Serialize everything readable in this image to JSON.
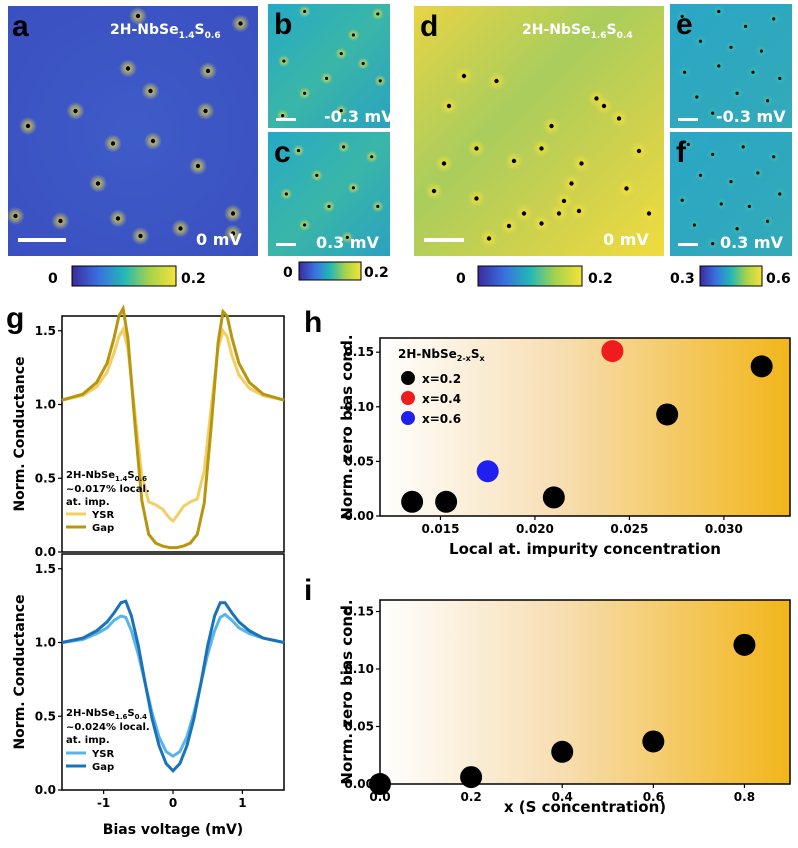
{
  "colors": {
    "map_low": "#3b4fc4",
    "map_mid": "#22b7b7",
    "map_high": "#f3e13a",
    "gold_dark": "#b8950f",
    "gold_light": "#f3cf63",
    "blue_dark": "#1a73b8",
    "blue_light": "#5ab4ea",
    "gradient_end": "#f2b619",
    "red": "#ee1c1c",
    "blue": "#1f1ff0"
  },
  "images": {
    "a": {
      "letter": "a",
      "title_base": "2H-NbSe",
      "title_sub1": "1.4",
      "title_mid": "S",
      "title_sub2": "0.6",
      "bias": "0 mV"
    },
    "b": {
      "letter": "b",
      "bias": "-0.3 mV"
    },
    "c": {
      "letter": "c",
      "bias": "0.3 mV"
    },
    "d": {
      "letter": "d",
      "title_base": "2H-NbSe",
      "title_sub1": "1.6",
      "title_mid": "S",
      "title_sub2": "0.4",
      "bias": "0 mV"
    },
    "e": {
      "letter": "e",
      "bias": "-0.3 mV"
    },
    "f": {
      "letter": "f",
      "bias": "0.3 mV"
    }
  },
  "colorbars": [
    {
      "name": "colorbar-a",
      "min": "0",
      "max": "0.2"
    },
    {
      "name": "colorbar-bc",
      "min": "0",
      "max": "0.2"
    },
    {
      "name": "colorbar-d",
      "min": "0",
      "max": "0.2"
    },
    {
      "name": "colorbar-ef",
      "min": "0.3",
      "max": "0.6"
    }
  ],
  "panel_letters": {
    "g": "g",
    "h": "h",
    "i": "i"
  },
  "chart_data": [
    {
      "id": "g-top",
      "type": "line",
      "xlim": [
        -1.6,
        1.6
      ],
      "ylim": [
        0,
        1.6
      ],
      "ylabel": "Norm. Conductance",
      "xlabel": "",
      "yticks": [
        "0.0",
        "0.5",
        "1.0",
        "1.5"
      ],
      "xticks": [],
      "legend": {
        "line1_base": "2H-NbSe",
        "line1_sub1": "1.4",
        "line1_mid": "S",
        "line1_sub2": "0.6",
        "line2": "~0.017% local.",
        "line3": "at. imp."
      },
      "series": [
        {
          "name": "YSR",
          "x": [
            -1.6,
            -1.3,
            -1.1,
            -0.95,
            -0.85,
            -0.78,
            -0.72,
            -0.65,
            -0.55,
            -0.45,
            -0.35,
            -0.25,
            -0.15,
            -0.05,
            0.0,
            0.05,
            0.15,
            0.25,
            0.35,
            0.45,
            0.55,
            0.65,
            0.72,
            0.78,
            0.85,
            0.95,
            1.1,
            1.3,
            1.6
          ],
          "y": [
            1.03,
            1.06,
            1.12,
            1.22,
            1.35,
            1.46,
            1.51,
            1.38,
            0.95,
            0.52,
            0.34,
            0.32,
            0.29,
            0.23,
            0.21,
            0.24,
            0.31,
            0.34,
            0.36,
            0.55,
            0.98,
            1.38,
            1.5,
            1.46,
            1.33,
            1.2,
            1.11,
            1.06,
            1.03
          ]
        },
        {
          "name": "Gap",
          "x": [
            -1.6,
            -1.3,
            -1.1,
            -0.95,
            -0.85,
            -0.78,
            -0.72,
            -0.65,
            -0.55,
            -0.45,
            -0.35,
            -0.25,
            -0.15,
            -0.05,
            0.0,
            0.05,
            0.15,
            0.25,
            0.35,
            0.45,
            0.55,
            0.65,
            0.72,
            0.78,
            0.85,
            0.95,
            1.1,
            1.3,
            1.6
          ],
          "y": [
            1.03,
            1.07,
            1.15,
            1.28,
            1.45,
            1.6,
            1.65,
            1.45,
            0.88,
            0.35,
            0.12,
            0.06,
            0.04,
            0.03,
            0.03,
            0.03,
            0.04,
            0.06,
            0.12,
            0.33,
            0.85,
            1.42,
            1.63,
            1.6,
            1.45,
            1.28,
            1.15,
            1.07,
            1.03
          ]
        }
      ]
    },
    {
      "id": "g-bottom",
      "type": "line",
      "xlim": [
        -1.6,
        1.6
      ],
      "ylim": [
        0,
        1.6
      ],
      "ylabel": "Norm. Conductance",
      "xlabel": "Bias voltage (mV)",
      "yticks": [
        "0.0",
        "0.5",
        "1.0",
        "1.5"
      ],
      "xticks": [
        "-1",
        "0",
        "1"
      ],
      "legend": {
        "line1_base": "2H-NbSe",
        "line1_sub1": "1.6",
        "line1_mid": "S",
        "line1_sub2": "0.4",
        "line2": "~0.024% local.",
        "line3": "at. imp."
      },
      "series": [
        {
          "name": "YSR",
          "x": [
            -1.6,
            -1.3,
            -1.1,
            -0.95,
            -0.85,
            -0.75,
            -0.68,
            -0.6,
            -0.5,
            -0.4,
            -0.3,
            -0.2,
            -0.1,
            0.0,
            0.1,
            0.2,
            0.3,
            0.4,
            0.5,
            0.6,
            0.68,
            0.75,
            0.85,
            0.95,
            1.1,
            1.3,
            1.6
          ],
          "y": [
            1.0,
            1.02,
            1.06,
            1.1,
            1.15,
            1.18,
            1.17,
            1.08,
            0.92,
            0.72,
            0.52,
            0.36,
            0.26,
            0.23,
            0.26,
            0.36,
            0.52,
            0.72,
            0.92,
            1.08,
            1.17,
            1.19,
            1.15,
            1.1,
            1.06,
            1.03,
            1.0
          ]
        },
        {
          "name": "Gap",
          "x": [
            -1.6,
            -1.3,
            -1.1,
            -0.95,
            -0.85,
            -0.75,
            -0.68,
            -0.6,
            -0.5,
            -0.4,
            -0.3,
            -0.2,
            -0.1,
            0.0,
            0.1,
            0.2,
            0.3,
            0.4,
            0.5,
            0.6,
            0.68,
            0.75,
            0.85,
            0.95,
            1.1,
            1.3,
            1.6
          ],
          "y": [
            1.0,
            1.03,
            1.08,
            1.14,
            1.2,
            1.27,
            1.28,
            1.18,
            0.98,
            0.72,
            0.48,
            0.3,
            0.18,
            0.13,
            0.18,
            0.3,
            0.48,
            0.72,
            0.98,
            1.18,
            1.27,
            1.27,
            1.2,
            1.14,
            1.08,
            1.03,
            1.0
          ]
        }
      ]
    },
    {
      "id": "h",
      "type": "scatter",
      "xlim": [
        0.0118,
        0.0335
      ],
      "ylim": [
        0,
        0.163
      ],
      "xlabel": "Local at. impurity concentration",
      "ylabel": "Norm. zero bias cond.",
      "xticks": [
        "0.015",
        "0.020",
        "0.025",
        "0.030"
      ],
      "yticks": [
        "0.00",
        "0.05",
        "0.10",
        "0.15"
      ],
      "legend_title_base": "2H-NbSe",
      "legend_title_sub": "2-x",
      "legend_title_mid": "S",
      "legend_title_sub2": "x",
      "series": [
        {
          "name": "x=0.2",
          "x": [
            0.0135,
            0.0153,
            0.021,
            0.027,
            0.032
          ],
          "y": [
            0.013,
            0.013,
            0.017,
            0.093,
            0.137
          ]
        },
        {
          "name": "x=0.4",
          "x": [
            0.0241
          ],
          "y": [
            0.151
          ]
        },
        {
          "name": "x=0.6",
          "x": [
            0.0175
          ],
          "y": [
            0.041
          ]
        }
      ]
    },
    {
      "id": "i",
      "type": "scatter",
      "xlim": [
        0.0,
        0.9
      ],
      "ylim": [
        0,
        0.16
      ],
      "xlabel": "x (S concentration)",
      "ylabel": "Norm. zero bias cond.",
      "xticks": [
        "0.0",
        "0.2",
        "0.4",
        "0.6",
        "0.8"
      ],
      "yticks": [
        "0.00",
        "0.05",
        "0.10",
        "0.15"
      ],
      "series": [
        {
          "name": "data",
          "x": [
            0.0,
            0.2,
            0.4,
            0.6,
            0.8
          ],
          "y": [
            0.0,
            0.006,
            0.028,
            0.037,
            0.121
          ]
        }
      ]
    }
  ]
}
